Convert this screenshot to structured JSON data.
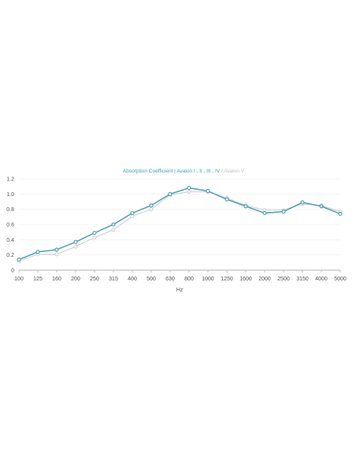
{
  "chart_data": {
    "type": "line",
    "title_primary": "Absorption Coefficient | Avalon I , II , III , IV",
    "title_separator": " / ",
    "title_secondary": "Avalon V",
    "xlabel": "Hz",
    "ylabel": "",
    "categories": [
      "100",
      "125",
      "160",
      "200",
      "250",
      "315",
      "400",
      "500",
      "630",
      "800",
      "1000",
      "1250",
      "1600",
      "2000",
      "2500",
      "3150",
      "4000",
      "5000"
    ],
    "ylim": [
      0,
      1.2
    ],
    "yticks": [
      "0",
      "0.2",
      "0.4",
      "0.6",
      "0.8",
      "1.0",
      "1.2"
    ],
    "grid": true,
    "series": [
      {
        "name": "Avalon V",
        "color": "#cfcfcf",
        "values": [
          0.12,
          0.21,
          0.21,
          0.31,
          0.43,
          0.53,
          0.71,
          0.8,
          0.99,
          1.03,
          1.03,
          0.95,
          0.85,
          0.79,
          0.79,
          0.87,
          0.85,
          0.77
        ]
      },
      {
        "name": "Avalon I , II , III , IV",
        "color": "#3d9db3",
        "values": [
          0.14,
          0.24,
          0.27,
          0.37,
          0.49,
          0.6,
          0.75,
          0.85,
          1.0,
          1.08,
          1.04,
          0.93,
          0.84,
          0.75,
          0.77,
          0.89,
          0.84,
          0.74
        ]
      }
    ]
  }
}
